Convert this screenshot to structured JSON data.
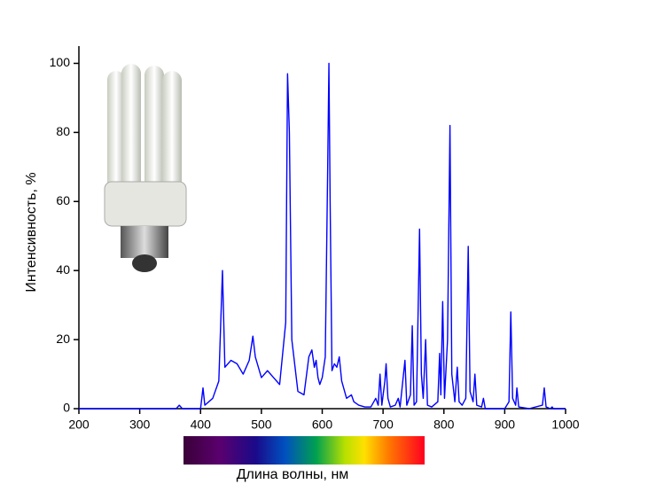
{
  "chart_data": {
    "type": "line",
    "x_label": "Длина волны, нм",
    "y_label": "Интенсивность, %",
    "color": "#0000ff",
    "xlim": [
      200,
      1000
    ],
    "ylim": [
      0,
      105
    ],
    "xticks": [
      200,
      300,
      400,
      500,
      600,
      700,
      800,
      900,
      1000
    ],
    "yticks": [
      0,
      20,
      40,
      60,
      80,
      100
    ],
    "x": [
      200,
      360,
      365,
      370,
      400,
      404,
      407,
      420,
      430,
      436,
      440,
      450,
      460,
      470,
      480,
      486,
      490,
      500,
      510,
      520,
      530,
      540,
      543,
      546,
      550,
      560,
      570,
      578,
      583,
      587,
      590,
      593,
      596,
      600,
      605,
      609,
      611,
      613,
      616,
      620,
      624,
      628,
      632,
      640,
      648,
      652,
      660,
      670,
      680,
      688,
      692,
      695,
      698,
      703,
      705,
      708,
      712,
      720,
      725,
      728,
      736,
      739,
      745,
      748,
      751,
      755,
      760,
      763,
      766,
      770,
      773,
      780,
      790,
      793,
      795,
      798,
      801,
      806,
      810,
      813,
      818,
      822,
      825,
      830,
      836,
      840,
      843,
      848,
      851,
      854,
      862,
      865,
      868,
      880,
      900,
      907,
      910,
      913,
      918,
      920,
      923,
      940,
      962,
      965,
      968,
      975,
      978,
      980,
      1000
    ],
    "values": [
      0,
      0,
      1,
      0,
      0,
      6,
      1,
      3,
      8,
      40,
      12,
      14,
      13,
      10,
      14,
      21,
      15,
      9,
      11,
      9,
      7,
      25,
      97,
      80,
      20,
      5,
      4,
      15,
      17,
      12,
      14,
      9,
      7,
      9,
      15,
      70,
      100,
      60,
      11,
      13,
      12,
      15,
      8,
      3,
      4,
      2,
      1,
      0.5,
      0.5,
      3,
      1,
      10,
      1,
      8,
      13,
      3,
      0.5,
      1,
      3,
      0.5,
      14,
      1,
      4,
      24,
      1,
      2,
      52,
      10,
      3,
      20,
      1,
      0.5,
      2,
      16,
      4,
      31,
      3,
      20,
      82,
      10,
      2,
      12,
      2,
      1,
      3,
      47,
      5,
      2,
      10,
      1,
      0.5,
      3,
      0,
      0,
      0,
      2,
      28,
      3,
      1,
      6,
      0.5,
      0,
      1,
      6,
      0.5,
      0,
      0.5,
      0,
      0
    ]
  }
}
